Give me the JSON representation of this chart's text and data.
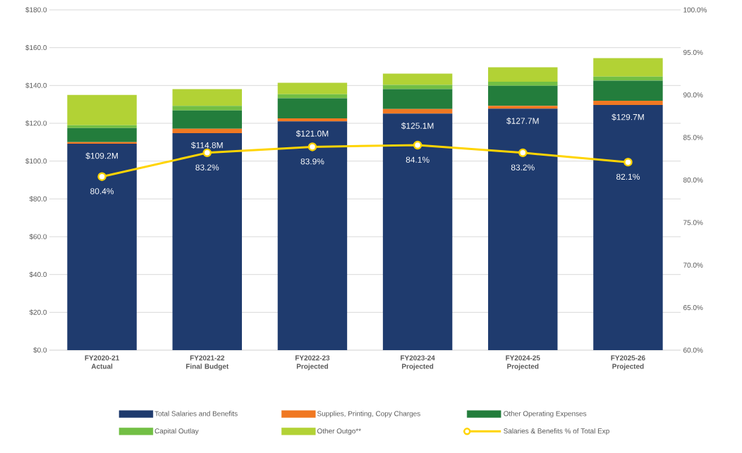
{
  "chart_data": {
    "type": "bar",
    "stacked": true,
    "grid": "y",
    "legend": "bottom",
    "categories": [
      "FY2020-21 Actual",
      "FY2021-22 Final Budget",
      "FY2022-23 Projected",
      "FY2023-24 Projected",
      "FY2024-25 Projected",
      "FY2025-26 Projected"
    ],
    "series": [
      {
        "name": "Total Salaries and Benefits",
        "color": "#1f3b6e",
        "values": [
          109.2,
          114.8,
          121.0,
          125.1,
          127.7,
          129.7
        ],
        "value_labels": [
          "$109.2M",
          "$114.8M",
          "$121.0M",
          "$125.1M",
          "$127.7M",
          "$129.7M"
        ]
      },
      {
        "name": "Supplies, Printing, Copy Charges",
        "color": "#f07822",
        "values": [
          0.8,
          2.3,
          1.6,
          2.4,
          1.5,
          2.2
        ]
      },
      {
        "name": "Other Operating Expenses",
        "color": "#237d3c",
        "values": [
          7.5,
          9.7,
          10.6,
          10.6,
          10.6,
          10.6
        ]
      },
      {
        "name": "Capital Outlay",
        "color": "#72bf44",
        "values": [
          1.5,
          2.4,
          2.2,
          2.2,
          2.2,
          2.2
        ]
      },
      {
        "name": "Other Outgo**",
        "color": "#b2d235",
        "values": [
          16.0,
          8.9,
          6.0,
          6.0,
          7.6,
          9.8
        ]
      },
      {
        "name": "Salaries & Benefits % of Total Exp",
        "type": "line",
        "axis": "y2",
        "marker": "circle",
        "color": "#ffd400",
        "values": [
          80.4,
          83.2,
          83.9,
          84.1,
          83.2,
          82.1
        ],
        "value_labels": [
          "80.4%",
          "83.2%",
          "83.9%",
          "84.1%",
          "83.2%",
          "82.1%"
        ]
      }
    ],
    "ylim": [
      0,
      180
    ],
    "yticks": [
      {
        "value": 0,
        "label": "$0.0"
      },
      {
        "value": 20,
        "label": "$20.0"
      },
      {
        "value": 40,
        "label": "$40.0"
      },
      {
        "value": 60,
        "label": "$60.0"
      },
      {
        "value": 80,
        "label": "$80.0"
      },
      {
        "value": 100,
        "label": "$100.0"
      },
      {
        "value": 120,
        "label": "$120.0"
      },
      {
        "value": 140,
        "label": "$140.0"
      },
      {
        "value": 160,
        "label": "$160.0"
      },
      {
        "value": 180,
        "label": "$180.0"
      }
    ],
    "y2lim": [
      60,
      100
    ],
    "y2ticks": [
      {
        "value": 60,
        "label": "60.0%"
      },
      {
        "value": 65,
        "label": "65.0%"
      },
      {
        "value": 70,
        "label": "70.0%"
      },
      {
        "value": 75,
        "label": "75.0%"
      },
      {
        "value": 80,
        "label": "80.0%"
      },
      {
        "value": 85,
        "label": "85.0%"
      },
      {
        "value": 90,
        "label": "90.0%"
      },
      {
        "value": 95,
        "label": "95.0%"
      },
      {
        "value": 100,
        "label": "100.0%"
      }
    ]
  }
}
